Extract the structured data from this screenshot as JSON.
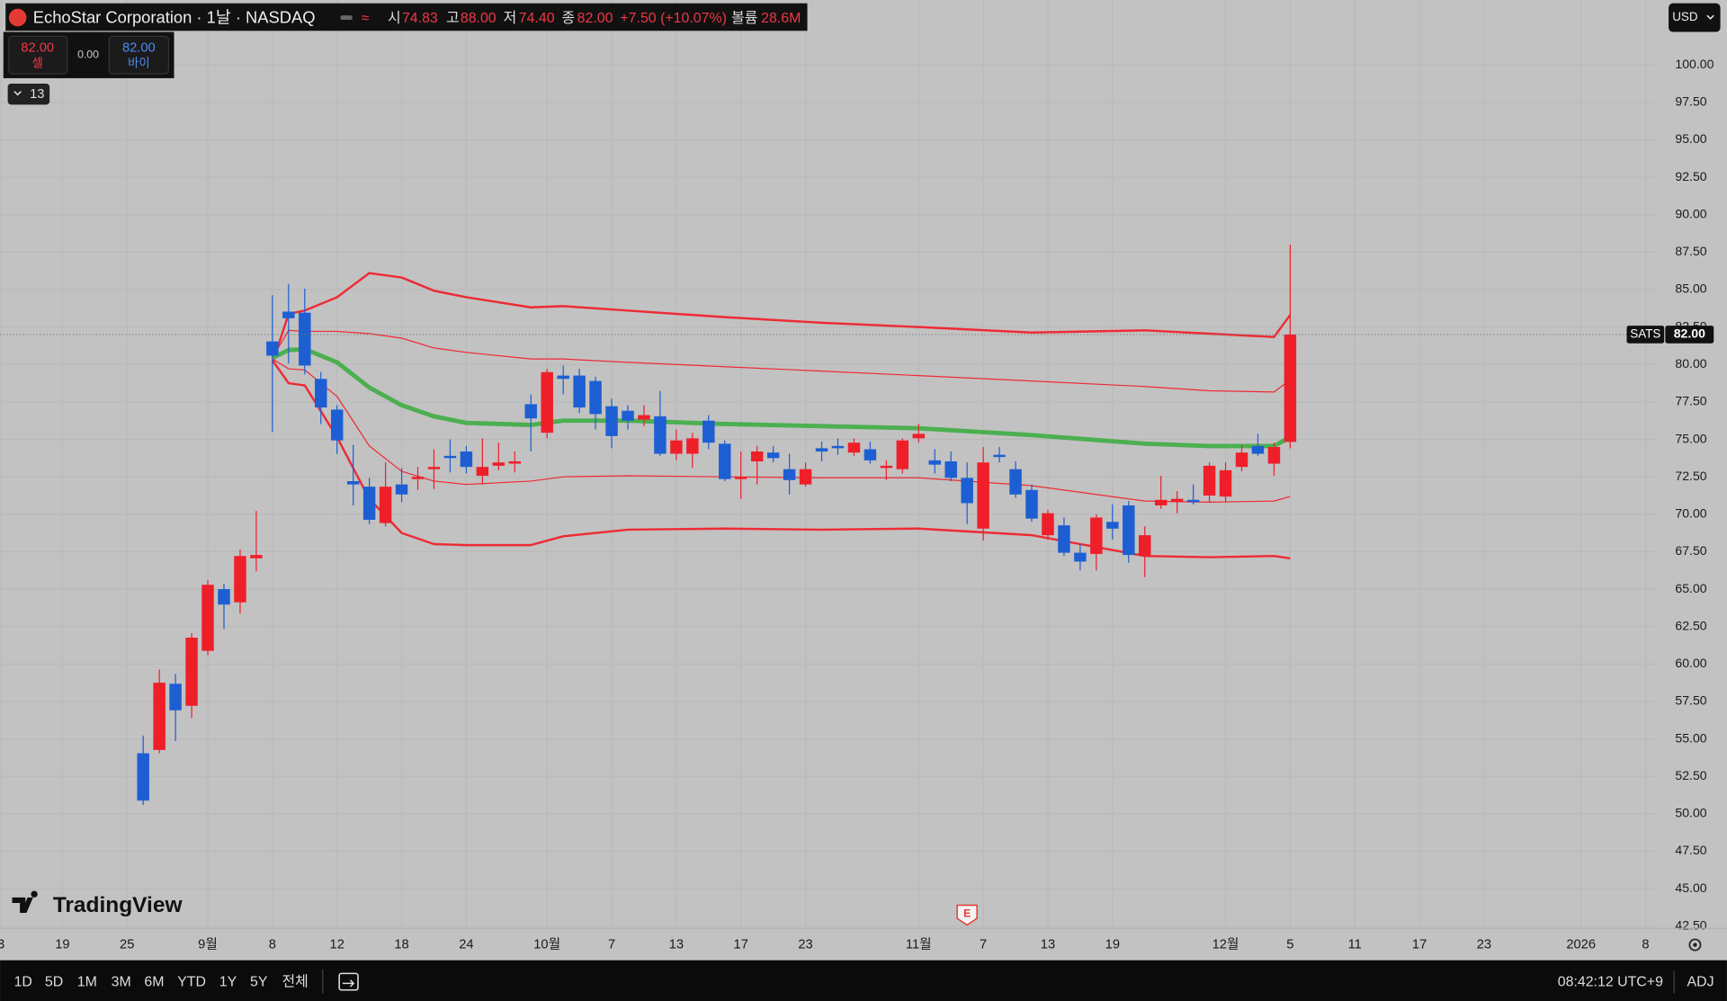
{
  "chart_data": {
    "type": "candlestick",
    "title": "EchoStar Corporation · 1날 · NASDAQ",
    "header": {
      "open_label": "시",
      "open": "74.83",
      "high_label": "고",
      "high": "88.00",
      "low_label": "저",
      "low": "74.40",
      "close_label": "종",
      "close": "82.00",
      "change": "+7.50 (+10.07%)",
      "volume_label": "볼륨",
      "volume": "28.6M"
    },
    "trade": {
      "sell_price": "82.00",
      "sell_label": "셀",
      "spread": "0.00",
      "buy_price": "82.00",
      "buy_label": "바이"
    },
    "indicator_toggle": "13",
    "currency": "USD",
    "logo": "TradingView",
    "up_color": "#ef1f2a",
    "down_color": "#1d5fd3",
    "x": [
      0,
      1,
      2,
      3,
      4,
      5,
      6,
      7,
      8,
      9,
      10,
      11,
      12,
      13,
      14,
      15,
      16,
      17,
      18,
      19,
      20,
      21,
      22,
      23,
      24,
      25,
      26,
      27,
      28,
      29,
      30,
      31,
      32,
      33,
      34,
      35,
      36,
      37,
      38,
      39,
      40,
      41,
      42,
      43,
      44,
      45,
      46,
      47,
      48,
      49,
      50,
      51,
      52,
      53,
      54,
      55,
      56,
      57,
      58,
      59,
      60,
      61,
      62,
      63,
      64,
      65,
      66,
      67,
      68,
      69,
      70,
      71
    ],
    "series": [
      {
        "name": "SATS",
        "last_label": "82.00",
        "open": [
          54.04,
          54.26,
          58.68,
          57.21,
          60.88,
          65.0,
          64.12,
          67.06,
          81.54,
          83.53,
          83.46,
          79.04,
          76.99,
          72.21,
          71.84,
          69.41,
          71.99,
          72.35,
          73.01,
          73.9,
          74.19,
          72.57,
          73.24,
          73.38,
          77.35,
          75.44,
          79.26,
          79.26,
          78.9,
          77.21,
          76.91,
          76.32,
          76.54,
          74.04,
          74.04,
          76.25,
          74.71,
          72.35,
          73.53,
          74.12,
          73.01,
          71.99,
          74.41,
          74.56,
          74.12,
          74.34,
          73.09,
          73.01,
          75.07,
          73.6,
          73.53,
          72.43,
          69.04,
          73.97,
          73.01,
          71.62,
          68.6,
          69.26,
          67.43,
          67.35,
          69.49,
          70.59,
          67.21,
          70.59,
          70.81,
          70.96,
          71.25,
          71.18,
          73.16,
          74.56,
          73.38,
          74.83
        ],
        "high": [
          55.22,
          59.63,
          59.34,
          62.06,
          65.59,
          65.37,
          67.65,
          70.22,
          84.63,
          85.37,
          85.07,
          79.49,
          77.28,
          74.63,
          72.43,
          73.46,
          73.09,
          73.16,
          74.34,
          75.0,
          74.56,
          75.07,
          74.78,
          74.19,
          78.01,
          79.71,
          79.93,
          79.71,
          79.19,
          77.72,
          77.28,
          77.28,
          78.24,
          75.66,
          75.44,
          76.62,
          74.93,
          74.19,
          74.56,
          74.56,
          74.04,
          73.46,
          74.85,
          75.07,
          75.07,
          74.85,
          73.6,
          75.07,
          76.03,
          74.34,
          74.19,
          73.46,
          74.49,
          74.49,
          73.53,
          71.99,
          70.29,
          69.78,
          68.01,
          70.0,
          70.66,
          70.88,
          69.19,
          72.57,
          71.54,
          71.99,
          73.46,
          73.46,
          74.63,
          75.37,
          74.78,
          88.0
        ],
        "low": [
          50.59,
          54.04,
          54.85,
          56.4,
          60.59,
          62.35,
          63.38,
          66.18,
          75.51,
          80.07,
          79.34,
          76.03,
          74.04,
          70.59,
          69.34,
          69.19,
          70.81,
          71.62,
          71.69,
          72.79,
          72.72,
          71.99,
          72.94,
          72.79,
          74.19,
          75.07,
          78.01,
          76.76,
          75.66,
          74.41,
          75.66,
          75.88,
          73.9,
          73.6,
          73.09,
          74.34,
          72.21,
          71.03,
          71.99,
          73.46,
          71.32,
          71.84,
          73.53,
          73.97,
          73.9,
          73.38,
          72.28,
          72.72,
          74.78,
          72.72,
          72.21,
          69.34,
          68.24,
          73.46,
          71.1,
          69.49,
          68.31,
          67.21,
          66.25,
          66.25,
          68.31,
          66.76,
          65.81,
          70.37,
          70.07,
          70.66,
          70.81,
          70.81,
          72.87,
          73.9,
          72.57,
          74.4
        ],
        "close": [
          50.88,
          58.75,
          56.91,
          61.76,
          65.29,
          63.97,
          67.21,
          67.28,
          80.59,
          83.09,
          79.93,
          77.13,
          74.93,
          71.99,
          69.63,
          71.84,
          71.32,
          72.5,
          73.16,
          73.75,
          73.16,
          73.16,
          73.46,
          73.53,
          76.4,
          79.49,
          79.04,
          77.13,
          76.69,
          75.22,
          76.25,
          76.62,
          74.04,
          74.93,
          75.07,
          74.78,
          72.35,
          72.5,
          74.19,
          73.75,
          72.28,
          73.01,
          74.19,
          74.41,
          74.78,
          73.6,
          73.24,
          74.93,
          75.37,
          73.31,
          72.43,
          70.74,
          73.46,
          73.82,
          71.32,
          69.71,
          70.07,
          67.43,
          66.84,
          69.78,
          69.04,
          67.28,
          68.6,
          70.96,
          71.03,
          70.81,
          73.24,
          72.94,
          74.12,
          74.04,
          74.49,
          82.0
        ]
      }
    ],
    "indicators": [
      {
        "color": "#ee2b35",
        "width": 2,
        "x": [
          8,
          9,
          10,
          12,
          14,
          16,
          18,
          20,
          24,
          26,
          30,
          36,
          42,
          48,
          55,
          62,
          66,
          70,
          71
        ],
        "values": [
          80.07,
          83.38,
          83.6,
          84.49,
          86.1,
          85.81,
          84.93,
          84.49,
          83.82,
          83.9,
          83.6,
          83.16,
          82.79,
          82.5,
          82.13,
          82.28,
          82.06,
          81.84,
          83.31
        ]
      },
      {
        "color": "#ee2b35",
        "width": 1,
        "x": [
          8,
          9,
          10,
          12,
          14,
          16,
          18,
          20,
          24,
          26,
          30,
          36,
          42,
          48,
          55,
          62,
          66,
          70,
          71
        ],
        "values": [
          80.44,
          82.28,
          82.21,
          82.21,
          82.06,
          81.76,
          81.1,
          80.81,
          80.37,
          80.37,
          80.15,
          79.85,
          79.56,
          79.26,
          78.9,
          78.53,
          78.24,
          78.16,
          78.97
        ]
      },
      {
        "color": "#4caf50",
        "width": 4,
        "x": [
          8,
          9,
          10,
          12,
          14,
          16,
          18,
          20,
          24,
          26,
          30,
          36,
          42,
          48,
          55,
          62,
          66,
          70,
          71
        ],
        "values": [
          80.44,
          80.96,
          81.03,
          80.15,
          78.46,
          77.28,
          76.54,
          76.1,
          75.96,
          76.25,
          76.25,
          76.03,
          75.88,
          75.74,
          75.29,
          74.71,
          74.56,
          74.56,
          75.15
        ]
      },
      {
        "color": "#ee2b35",
        "width": 1,
        "x": [
          8,
          9,
          10,
          12,
          14,
          16,
          18,
          20,
          24,
          26,
          30,
          36,
          42,
          48,
          55,
          62,
          66,
          70,
          71
        ],
        "values": [
          80.37,
          79.71,
          79.63,
          77.87,
          74.56,
          72.87,
          72.21,
          71.99,
          72.21,
          72.5,
          72.57,
          72.5,
          72.43,
          72.43,
          71.91,
          70.88,
          70.81,
          70.88,
          71.18
        ]
      },
      {
        "color": "#ee2b35",
        "width": 2,
        "x": [
          8,
          9,
          10,
          12,
          14,
          16,
          18,
          20,
          24,
          26,
          30,
          36,
          42,
          48,
          55,
          62,
          66,
          70,
          71
        ],
        "values": [
          80.29,
          78.75,
          78.6,
          75.15,
          71.03,
          68.75,
          68.01,
          67.94,
          67.94,
          68.53,
          68.97,
          69.04,
          68.97,
          69.04,
          68.6,
          67.21,
          67.13,
          67.21,
          67.06
        ]
      }
    ],
    "events": [
      {
        "x": 51,
        "label": "E"
      }
    ],
    "xlim": [
      -8.86,
      93.74
    ],
    "ylim": [
      42.35,
      104.34
    ],
    "xticks": [
      {
        "value": -8.8,
        "label": "3"
      },
      {
        "value": -5,
        "label": "19"
      },
      {
        "value": -1,
        "label": "25"
      },
      {
        "value": 4,
        "label": "9월"
      },
      {
        "value": 8,
        "label": "8"
      },
      {
        "value": 12,
        "label": "12"
      },
      {
        "value": 16,
        "label": "18"
      },
      {
        "value": 20,
        "label": "24"
      },
      {
        "value": 25,
        "label": "10월"
      },
      {
        "value": 29,
        "label": "7"
      },
      {
        "value": 33,
        "label": "13"
      },
      {
        "value": 37,
        "label": "17"
      },
      {
        "value": 41,
        "label": "23"
      },
      {
        "value": 48,
        "label": "11월"
      },
      {
        "value": 52,
        "label": "7"
      },
      {
        "value": 56,
        "label": "13"
      },
      {
        "value": 60,
        "label": "19"
      },
      {
        "value": 67,
        "label": "12월"
      },
      {
        "value": 71,
        "label": "5"
      },
      {
        "value": 75,
        "label": "11"
      },
      {
        "value": 79,
        "label": "17"
      },
      {
        "value": 83,
        "label": "23"
      },
      {
        "value": 89,
        "label": "2026"
      },
      {
        "value": 93,
        "label": "8"
      }
    ],
    "yticks": [
      {
        "value": 42.5,
        "label": "42.50"
      },
      {
        "value": 45,
        "label": "45.00"
      },
      {
        "value": 47.5,
        "label": "47.50"
      },
      {
        "value": 50,
        "label": "50.00"
      },
      {
        "value": 52.5,
        "label": "52.50"
      },
      {
        "value": 55,
        "label": "55.00"
      },
      {
        "value": 57.5,
        "label": "57.50"
      },
      {
        "value": 60,
        "label": "60.00"
      },
      {
        "value": 62.5,
        "label": "62.50"
      },
      {
        "value": 65,
        "label": "65.00"
      },
      {
        "value": 67.5,
        "label": "67.50"
      },
      {
        "value": 70,
        "label": "70.00"
      },
      {
        "value": 72.5,
        "label": "72.50"
      },
      {
        "value": 75,
        "label": "75.00"
      },
      {
        "value": 77.5,
        "label": "77.50"
      },
      {
        "value": 80,
        "label": "80.00"
      },
      {
        "value": 82.5,
        "label": "82.50"
      },
      {
        "value": 85,
        "label": "85.00"
      },
      {
        "value": 87.5,
        "label": "87.50"
      },
      {
        "value": 90,
        "label": "90.00"
      },
      {
        "value": 92.5,
        "label": "92.50"
      },
      {
        "value": 95,
        "label": "95.00"
      },
      {
        "value": 97.5,
        "label": "97.50"
      },
      {
        "value": 100,
        "label": "100.00"
      }
    ],
    "grid": true,
    "toolbar": {
      "ranges": [
        "1D",
        "5D",
        "1M",
        "3M",
        "6M",
        "YTD",
        "1Y",
        "5Y",
        "전체"
      ],
      "clock": "08:42:12 UTC+9",
      "adj": "ADJ"
    }
  }
}
